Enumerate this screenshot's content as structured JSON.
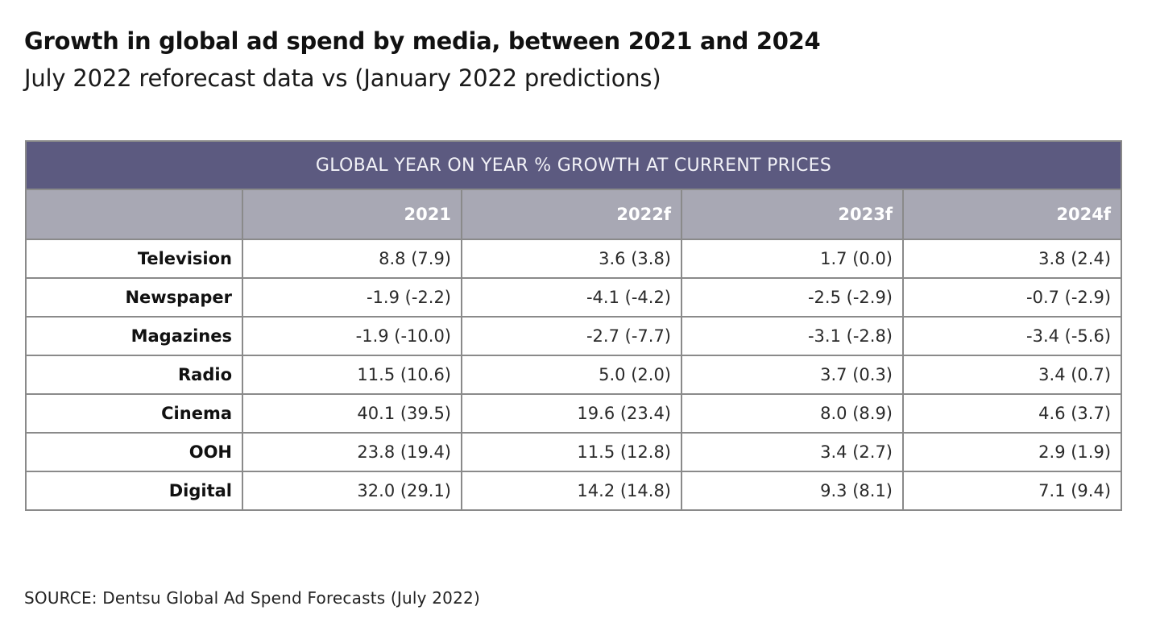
{
  "header": {
    "title": "Growth in global ad spend by media, between 2021 and 2024",
    "subtitle": "July 2022 reforecast data vs (January 2022 predictions)"
  },
  "table": {
    "band_title": "GLOBAL YEAR ON YEAR % GROWTH AT CURRENT PRICES",
    "columns": [
      "",
      "2021",
      "2022f",
      "2023f",
      "2024f"
    ],
    "rows": [
      {
        "label": "Television",
        "cells": [
          "8.8 (7.9)",
          "3.6 (3.8)",
          "1.7 (0.0)",
          "3.8 (2.4)"
        ]
      },
      {
        "label": "Newspaper",
        "cells": [
          "-1.9 (-2.2)",
          "-4.1 (-4.2)",
          "-2.5 (-2.9)",
          "-0.7 (-2.9)"
        ]
      },
      {
        "label": "Magazines",
        "cells": [
          "-1.9 (-10.0)",
          "-2.7 (-7.7)",
          "-3.1 (-2.8)",
          "-3.4 (-5.6)"
        ]
      },
      {
        "label": "Radio",
        "cells": [
          "11.5 (10.6)",
          "5.0 (2.0)",
          "3.7 (0.3)",
          "3.4 (0.7)"
        ]
      },
      {
        "label": "Cinema",
        "cells": [
          "40.1 (39.5)",
          "19.6 (23.4)",
          "8.0 (8.9)",
          "4.6 (3.7)"
        ]
      },
      {
        "label": "OOH",
        "cells": [
          "23.8 (19.4)",
          "11.5 (12.8)",
          "3.4 (2.7)",
          "2.9 (1.9)"
        ]
      },
      {
        "label": "Digital",
        "cells": [
          "32.0 (29.1)",
          "14.2 (14.8)",
          "9.3 (8.1)",
          "7.1 (9.4)"
        ]
      }
    ]
  },
  "footer": {
    "source": "SOURCE: Dentsu Global Ad Spend Forecasts (July 2022)"
  },
  "colors": {
    "band_bg": "#5c5a80",
    "header_bg": "#a8a8b4",
    "grid_line": "#8a8a8a"
  },
  "chart_data": {
    "type": "table",
    "title": "Growth in global ad spend by media, between 2021 and 2024",
    "subtitle": "July 2022 reforecast data vs (January 2022 predictions)",
    "table_title": "GLOBAL YEAR ON YEAR % GROWTH AT CURRENT PRICES",
    "categories": [
      "Television",
      "Newspaper",
      "Magazines",
      "Radio",
      "Cinema",
      "OOH",
      "Digital"
    ],
    "x": [
      "2021",
      "2022f",
      "2023f",
      "2024f"
    ],
    "series": [
      {
        "name": "July 2022 reforecast",
        "values": [
          [
            8.8,
            3.6,
            1.7,
            3.8
          ],
          [
            -1.9,
            -4.1,
            -2.5,
            -0.7
          ],
          [
            -1.9,
            -2.7,
            -3.1,
            -3.4
          ],
          [
            11.5,
            5.0,
            3.7,
            3.4
          ],
          [
            40.1,
            19.6,
            8.0,
            4.6
          ],
          [
            23.8,
            11.5,
            3.4,
            2.9
          ],
          [
            32.0,
            14.2,
            9.3,
            7.1
          ]
        ]
      },
      {
        "name": "January 2022 predictions",
        "values": [
          [
            7.9,
            3.8,
            0.0,
            2.4
          ],
          [
            -2.2,
            -4.2,
            -2.9,
            -2.9
          ],
          [
            -10.0,
            -7.7,
            -2.8,
            -5.6
          ],
          [
            10.6,
            2.0,
            0.3,
            0.7
          ],
          [
            39.5,
            23.4,
            8.9,
            3.7
          ],
          [
            19.4,
            12.8,
            2.7,
            1.9
          ],
          [
            29.1,
            14.8,
            8.1,
            9.4
          ]
        ]
      }
    ],
    "units": "% year on year growth at current prices",
    "source": "SOURCE: Dentsu Global Ad Spend Forecasts (July 2022)"
  }
}
